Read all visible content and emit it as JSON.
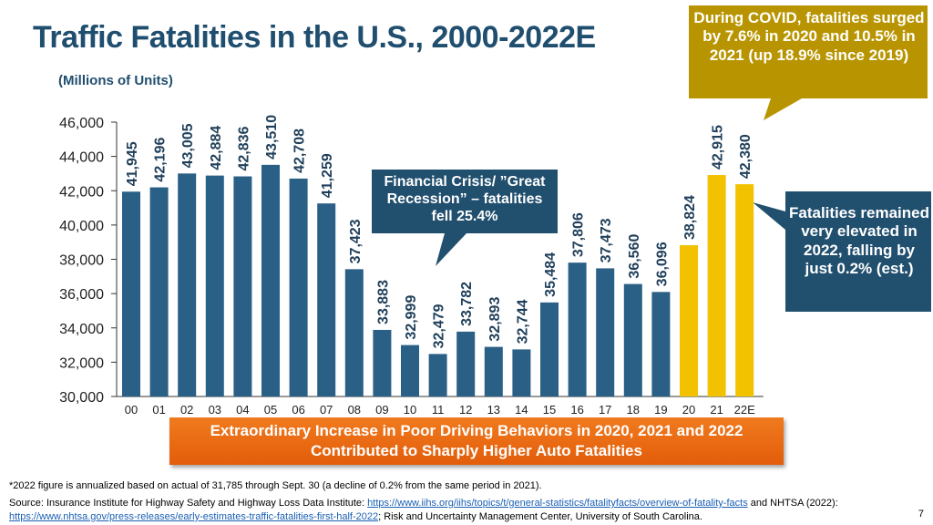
{
  "title": "Traffic Fatalities in the U.S., 2000-2022E",
  "subtitle": "(Millions of Units)",
  "callouts": {
    "covid": "During COVID, fatalities surged by 7.6% in 2020 and 10.5% in 2021 (up 18.9% since 2019)",
    "financial": "Financial Crisis/ ”Great Recession” – fatalities fell 25.4%",
    "elevated": "Fatalities remained very elevated in 2022, falling by just 0.2% (est.)"
  },
  "banner": "Extraordinary Increase in Poor Driving Behaviors in 2020, 2021  and 2022 Contributed to Sharply Higher Auto Fatalities",
  "footnote": "*2022 figure is annualized based on actual of 31,785 through Sept. 30 (a decline of 0.2% from the same period in 2021).",
  "source": {
    "prefix": "Source: Insurance Institute for Highway Safety and Highway Loss Data Institute: ",
    "link1": "https://www.iihs.org/iihs/topics/t/general-statistics/fatalityfacts/overview-of-fatality-facts",
    "middle": " and NHTSA (2022): ",
    "link2": "https://www.nhtsa.gov/press-releases/early-estimates-traffic-fatalities-first-half-2022",
    "suffix": "; Risk and Uncertainty Management Center, University of South Carolina."
  },
  "page_number": "7",
  "colors": {
    "bar_blue": "#2a5f86",
    "bar_yellow": "#f2c200",
    "covid_callout": "#b89500",
    "dark_callout": "#214f6e",
    "axis": "#333333"
  },
  "chart_data": {
    "type": "bar",
    "title": "Traffic Fatalities in the U.S., 2000-2022E",
    "xlabel": "",
    "ylabel": "",
    "ylim": [
      30000,
      46000
    ],
    "yticks": [
      "30,000",
      "32,000",
      "34,000",
      "36,000",
      "38,000",
      "40,000",
      "42,000",
      "44,000",
      "46,000"
    ],
    "ytick_values": [
      30000,
      32000,
      34000,
      36000,
      38000,
      40000,
      42000,
      44000,
      46000
    ],
    "categories": [
      "00",
      "01",
      "02",
      "03",
      "04",
      "05",
      "06",
      "07",
      "08",
      "09",
      "10",
      "11",
      "12",
      "13",
      "14",
      "15",
      "16",
      "17",
      "18",
      "19",
      "20",
      "21",
      "22E"
    ],
    "values": [
      41945,
      42196,
      43005,
      42884,
      42836,
      43510,
      42708,
      41259,
      37423,
      33883,
      32999,
      32479,
      33782,
      32893,
      32744,
      35484,
      37806,
      37473,
      36560,
      36096,
      38824,
      42915,
      42380
    ],
    "labels": [
      "41,945",
      "42,196",
      "43,005",
      "42,884",
      "42,836",
      "43,510",
      "42,708",
      "41,259",
      "37,423",
      "33,883",
      "32,999",
      "32,479",
      "33,782",
      "32,893",
      "32,744",
      "35,484",
      "37,806",
      "37,473",
      "36,560",
      "36,096",
      "38,824",
      "42,915",
      "42,380"
    ],
    "highlight": [
      false,
      false,
      false,
      false,
      false,
      false,
      false,
      false,
      false,
      false,
      false,
      false,
      false,
      false,
      false,
      false,
      false,
      false,
      false,
      false,
      true,
      true,
      true
    ]
  }
}
